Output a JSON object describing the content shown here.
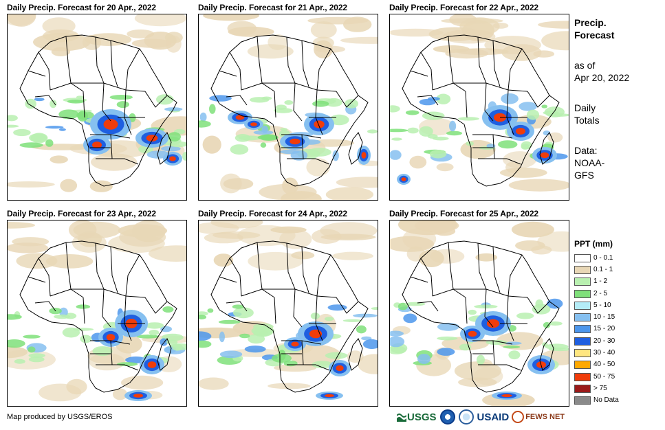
{
  "panels": [
    {
      "title": "Daily Precip. Forecast for 20 Apr., 2022"
    },
    {
      "title": "Daily Precip. Forecast for 21 Apr., 2022"
    },
    {
      "title": "Daily Precip. Forecast for 22 Apr., 2022"
    },
    {
      "title": "Daily Precip. Forecast for 23 Apr., 2022"
    },
    {
      "title": "Daily Precip. Forecast for 24 Apr., 2022"
    },
    {
      "title": "Daily Precip. Forecast for 25 Apr., 2022"
    }
  ],
  "side": {
    "title_line1": "Precip.",
    "title_line2": "Forecast",
    "asof_line1": "as of",
    "asof_line2": "Apr 20, 2022",
    "daily_line1": "Daily",
    "daily_line2": "Totals",
    "data_line1": "Data:",
    "data_line2": "NOAA-",
    "data_line3": "GFS"
  },
  "legend": {
    "title": "PPT (mm)",
    "items": [
      {
        "label": "0 - 0.1",
        "color": "#ffffff"
      },
      {
        "label": "0.1 - 1",
        "color": "#e8d7b6"
      },
      {
        "label": "1 - 2",
        "color": "#b9f0b0"
      },
      {
        "label": "2 - 5",
        "color": "#7fe07a"
      },
      {
        "label": "5 - 10",
        "color": "#b4ecf7"
      },
      {
        "label": "10 - 15",
        "color": "#86c0f0"
      },
      {
        "label": "15 - 20",
        "color": "#4c96ec"
      },
      {
        "label": "20 - 30",
        "color": "#1f5fe0"
      },
      {
        "label": "30 - 40",
        "color": "#ffe680"
      },
      {
        "label": "40 - 50",
        "color": "#ffa800"
      },
      {
        "label": "50 - 75",
        "color": "#f03c0a"
      },
      {
        "label": "> 75",
        "color": "#9b1a1a"
      },
      {
        "label": "No Data",
        "color": "#8a8a8a"
      }
    ]
  },
  "footer": {
    "credit": "Map produced by USGS/EROS"
  },
  "logos": {
    "usgs": "USGS",
    "usaid": "USAID",
    "fews": "FEWS NET"
  }
}
